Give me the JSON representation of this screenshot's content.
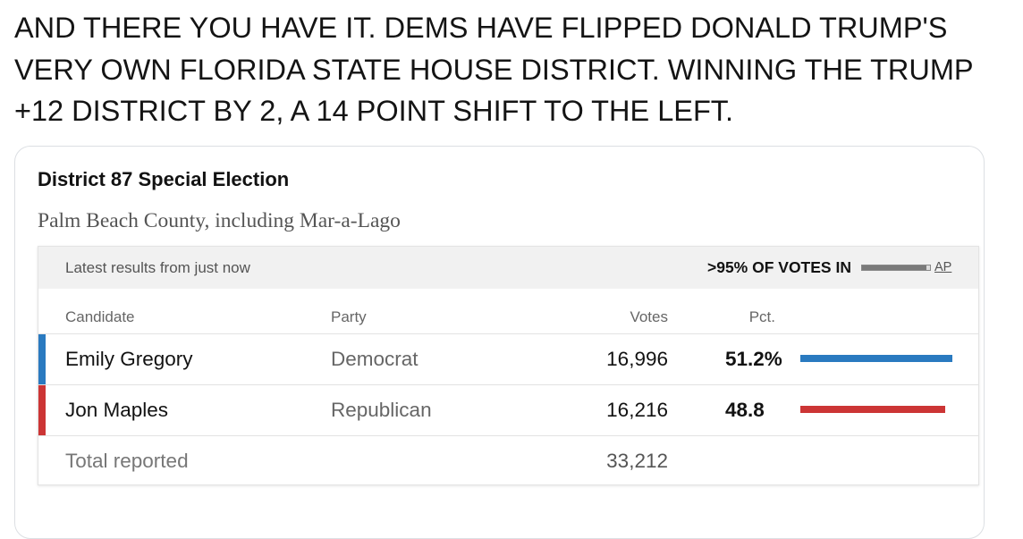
{
  "tweet": {
    "lines": [
      "AND THERE YOU HAVE IT. DEMS HAVE FLIPPED DONALD TRUMP'S",
      "VERY OWN FLORIDA STATE HOUSE DISTRICT. WINNING THE TRUMP",
      "+12 DISTRICT BY 2, A 14 POINT SHIFT TO THE LEFT."
    ]
  },
  "card": {
    "title": "District 87 Special Election",
    "subtitle": "Palm Beach County, including Mar-a-Lago",
    "header": {
      "latest": "Latest results from just now",
      "votes_in": ">95% OF VOTES IN",
      "reporting_fraction": 0.95,
      "source_link": "AP"
    },
    "columns": {
      "candidate": "Candidate",
      "party": "Party",
      "votes": "Votes",
      "pct": "Pct."
    },
    "candidates": [
      {
        "name": "Emily Gregory",
        "party": "Democrat",
        "votes": "16,996",
        "pct": "51.2%",
        "share": 51.2,
        "color": "#2a7ac0"
      },
      {
        "name": "Jon Maples",
        "party": "Republican",
        "votes": "16,216",
        "pct": "48.8",
        "share": 48.8,
        "color": "#cc3535"
      }
    ],
    "total": {
      "label": "Total reported",
      "votes": "33,212"
    }
  }
}
